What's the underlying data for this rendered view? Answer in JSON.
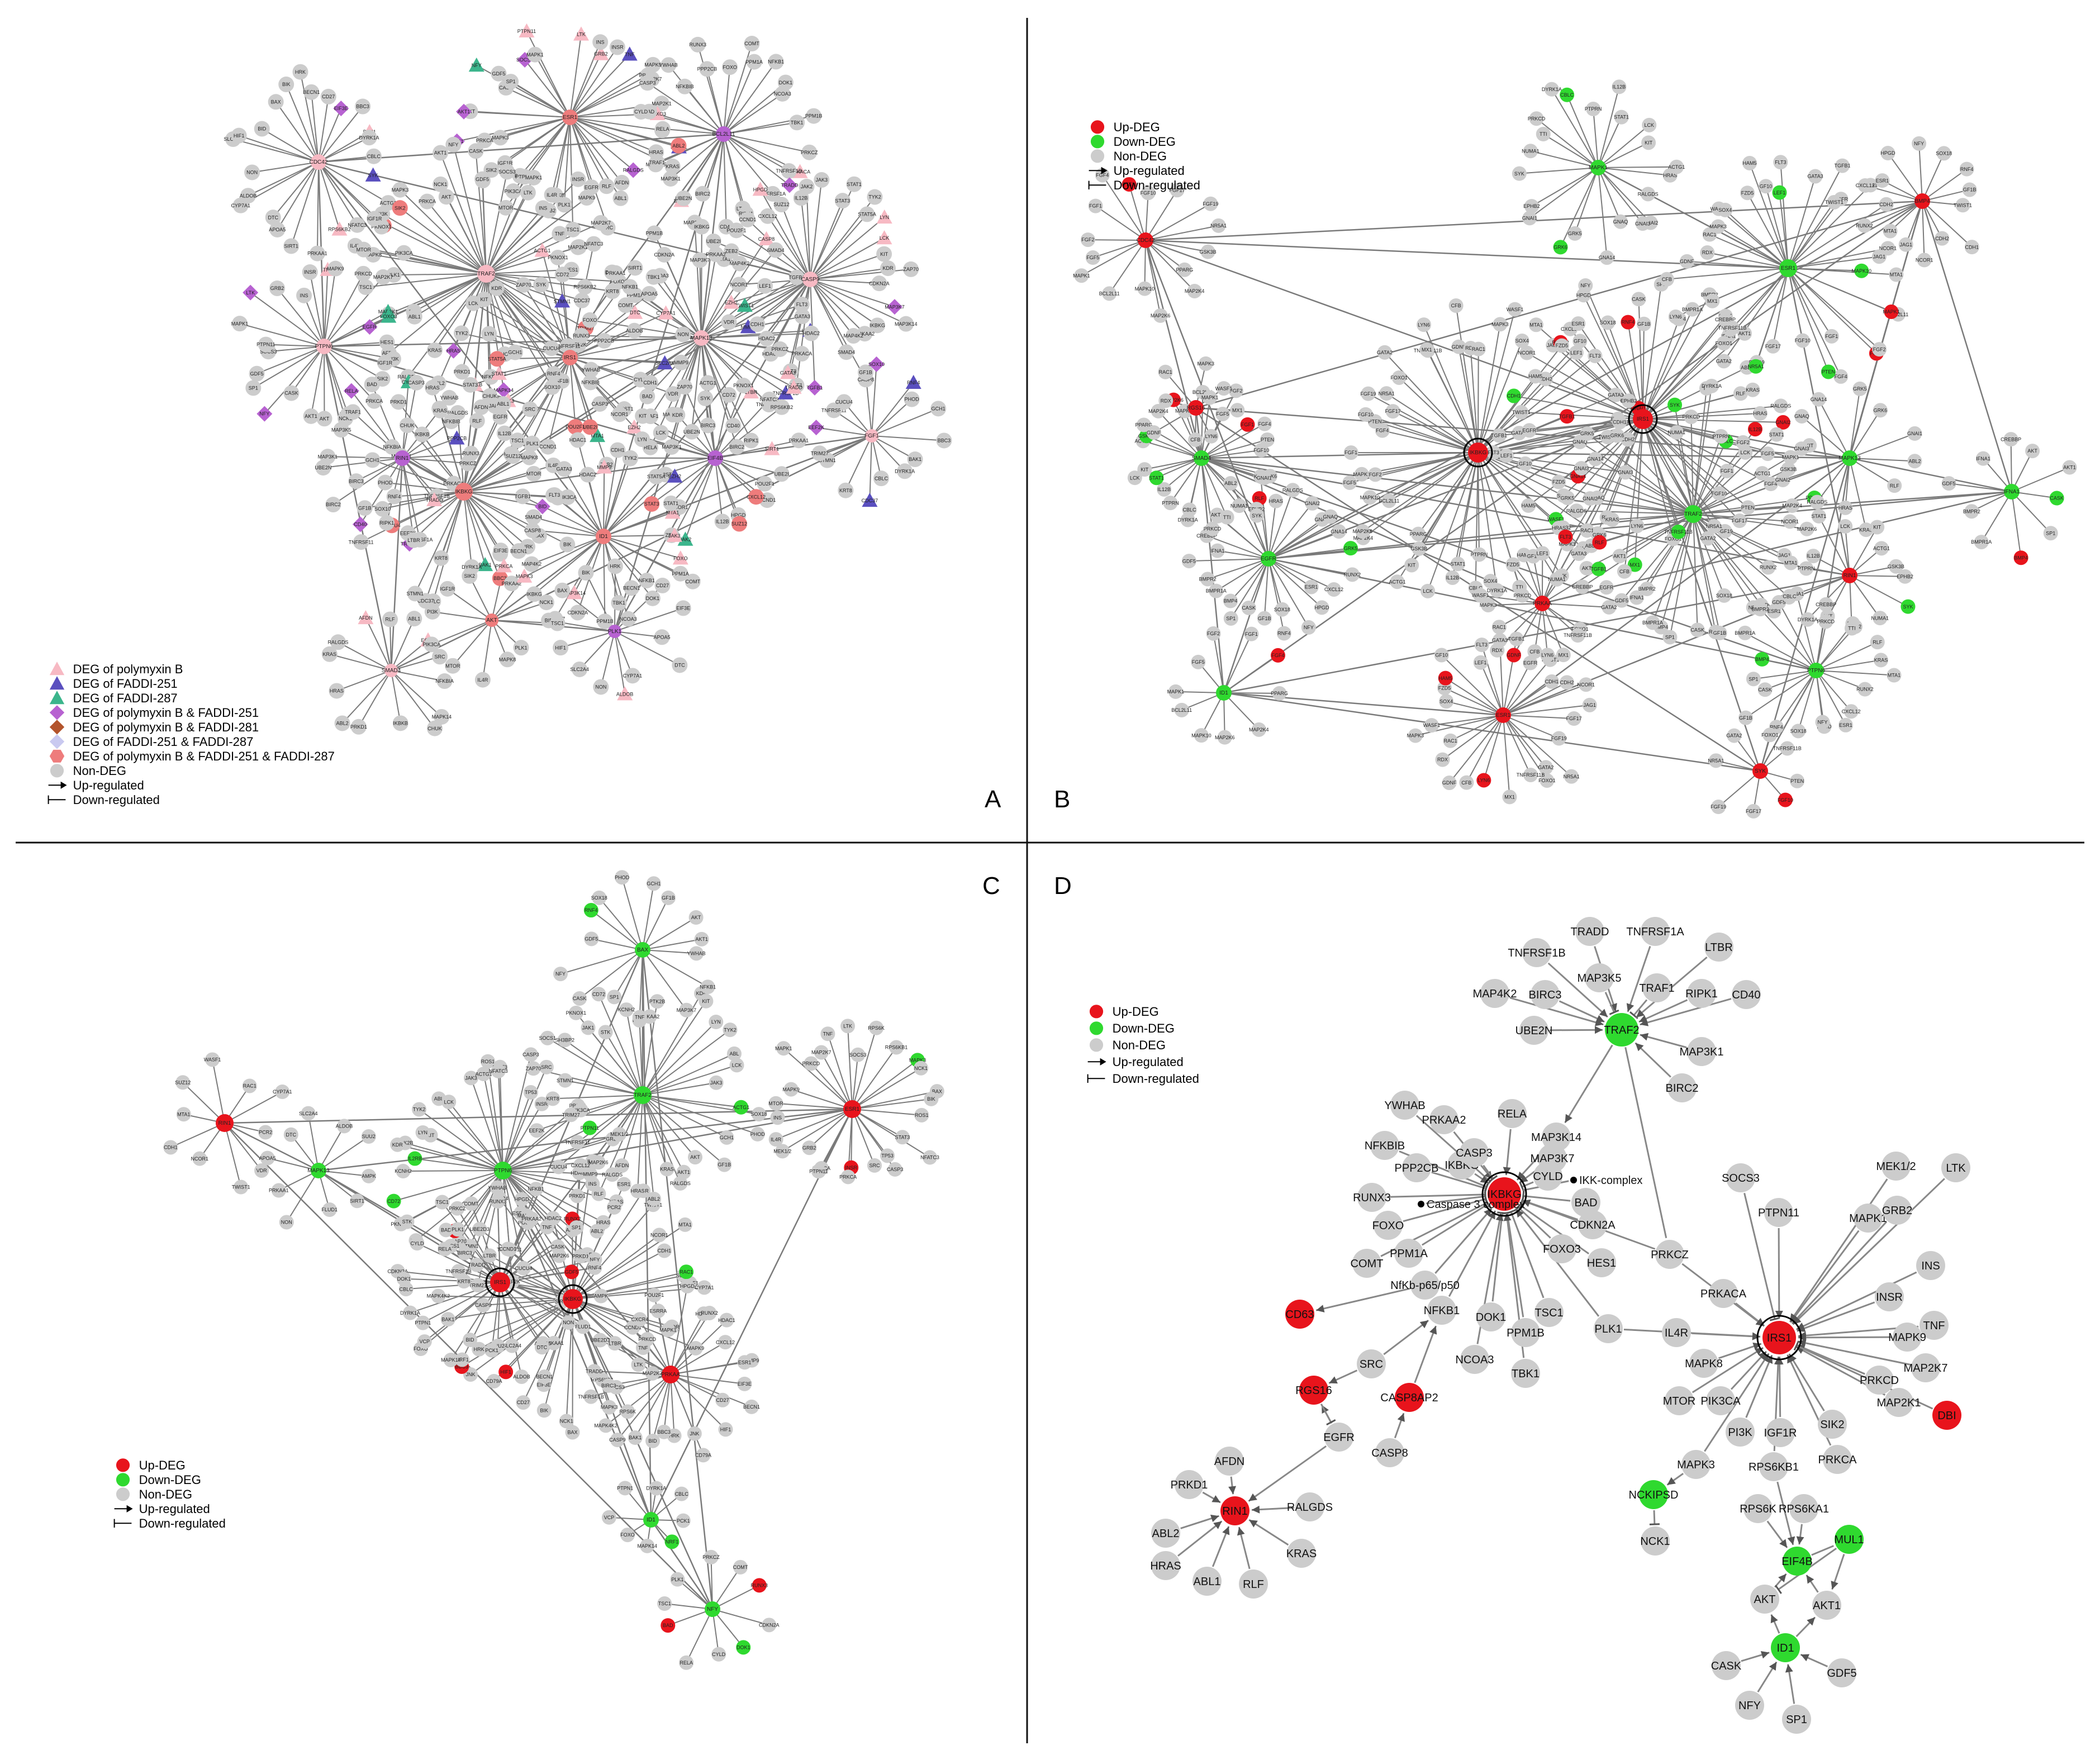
{
  "panels": {
    "A": {
      "letter": "A",
      "legend": [
        {
          "shape": "tri",
          "color": "#f7b9c3",
          "label": "DEG of polymyxin B"
        },
        {
          "shape": "tri",
          "color": "#5a4fbf",
          "label": "DEG of FADDI-251"
        },
        {
          "shape": "tri",
          "color": "#3bb58c",
          "label": "DEG of FADDI-287"
        },
        {
          "shape": "diamond",
          "color": "#b762d1",
          "label": "DEG of polymyxin B & FADDI-251"
        },
        {
          "shape": "diamond",
          "color": "#b3542c",
          "label": "DEG of polymyxin B & FADDI-281"
        },
        {
          "shape": "diamond",
          "color": "#c9c9f0",
          "label": "DEG of FADDI-251 & FADDI-287"
        },
        {
          "shape": "hex",
          "color": "#ee7c7c",
          "label": "DEG of polymyxin B & FADDI-251 & FADDI-287"
        },
        {
          "shape": "circle",
          "color": "#cccccc",
          "label": "Non-DEG"
        },
        {
          "shape": "arrow",
          "color": "#000000",
          "label": "Up-regulated"
        },
        {
          "shape": "tee",
          "color": "#000000",
          "label": "Down-regulated"
        }
      ],
      "hubs": [
        "IRS1",
        "IKBKG",
        "TRAF2",
        "RIN1",
        "ID1",
        "EIF4B",
        "ESR1",
        "CDC42",
        "MAPK13",
        "PTPN6",
        "CASP9",
        "BCL2L11"
      ],
      "labels": [
        "PRKD1",
        "ABL2",
        "HRAS",
        "KRAS",
        "RALGDS",
        "AFDN",
        "RLF",
        "ABL1",
        "EGFR",
        "SRC",
        "TSC1",
        "PLK1",
        "MAPK8",
        "IL4R",
        "MTOR",
        "PIK3CA",
        "PI3K",
        "IGF1R",
        "SIK2",
        "PRKCA",
        "MAPK3",
        "NCK1",
        "AKT",
        "AKT1",
        "CASK",
        "NFY",
        "SP1",
        "GDF5",
        "SOCS3",
        "PTPN11",
        "MAPK1",
        "LTK",
        "GRB2",
        "INS",
        "INSR",
        "TNF",
        "MAPK9",
        "PRKCD",
        "MAP2K7",
        "MAP2K1",
        "FOXO3",
        "HES1",
        "PRKCZ",
        "PRKACA",
        "TNFRSF1B",
        "TRADD",
        "TNFRSF1A",
        "LTBR",
        "RIPK1",
        "CD40",
        "BIRC2",
        "BIRC3",
        "UBE2N",
        "MAP3K1",
        "MAP3K5",
        "TRAF1",
        "RELA",
        "BAD",
        "CYLD",
        "CASP3",
        "YWHAB",
        "NFKBIB",
        "PPP2CB",
        "RUNX3",
        "FOXO",
        "COMT",
        "PPM1A",
        "NFKB1",
        "DOK1",
        "NCOA3",
        "TBK1",
        "PPM1B",
        "CDKN2A",
        "MAP3K14",
        "MAP3K7",
        "IKBKG",
        "PRKAA2",
        "MAP4K2",
        "CASP8",
        "SMAD4",
        "TGFB1",
        "LEF1",
        "FLT3",
        "GATA3",
        "HDAC1",
        "HDAC2",
        "MMP9",
        "CDH1",
        "VDR",
        "TWIST1",
        "EZH2",
        "NCOR1",
        "MTA1",
        "ZEB2",
        "UBE2I",
        "POU2F1",
        "CCND1",
        "CXCL12",
        "HPGD",
        "SUZ12",
        "IL12B",
        "JAK2",
        "JAK3",
        "STAT1",
        "STAT3",
        "STAT5A",
        "TYK2",
        "LYN",
        "LCK",
        "KIT",
        "KDR",
        "ZAP70",
        "SYK",
        "ACTG1",
        "CD72",
        "PKNOX1",
        "NFATC3",
        "RPS6KB2",
        "PRKAA1",
        "SIRT1",
        "APOA5",
        "DTC",
        "CYP7A1",
        "ALDOB",
        "NON",
        "SLC2A4",
        "HIF1",
        "BID",
        "BAX",
        "BIK",
        "HRK",
        "BECN1",
        "CD27",
        "EIF3E",
        "BBC3",
        "BAK1",
        "DYRK1A",
        "CBLC",
        "CDC37",
        "KRT8",
        "STMN1",
        "TRIM27",
        "EEF2K",
        "TNFRSF11",
        "CUCU4",
        "GF1B",
        "SOX10",
        "RNF4",
        "PHOD",
        "GCH1",
        "NFKBIA",
        "MAPK14",
        "CHUK",
        "IKBKB"
      ]
    },
    "B": {
      "letter": "B",
      "legend": [
        {
          "shape": "circle",
          "color": "#e8141c",
          "label": "Up-DEG"
        },
        {
          "shape": "circle",
          "color": "#2fd92f",
          "label": "Down-DEG"
        },
        {
          "shape": "circle",
          "color": "#cccccc",
          "label": "Non-DEG"
        },
        {
          "shape": "arrow",
          "color": "#000000",
          "label": "Up-regulated"
        },
        {
          "shape": "tee",
          "color": "#000000",
          "label": "Down-regulated"
        }
      ],
      "labels": [
        "MAPK1",
        "FGF5",
        "FGF2",
        "FGF1",
        "FGF4",
        "PTEN",
        "FGF10",
        "FGF17",
        "FGF19",
        "NR5A1",
        "GATA2",
        "FOXO1",
        "TNFRSF11B",
        "MX1",
        "LYN6",
        "CFB",
        "GDNF",
        "RDX",
        "RAC1",
        "MAPK3",
        "WASF1",
        "SOX4",
        "FZD5",
        "HAM5",
        "GF10",
        "LEF1",
        "FLT3",
        "GATA3",
        "TGFB1",
        "EGFR",
        "TWIST1",
        "CDH1",
        "CDH2",
        "NCOR1",
        "JAG1",
        "MTA1",
        "RUNX2",
        "CXCL12",
        "ESR1",
        "HPGD",
        "NFY",
        "SOX18",
        "RNF4",
        "GF1B",
        "CASK",
        "SP1",
        "BMP4",
        "BMPR1A",
        "BMPR2",
        "GDF5",
        "IFNA1",
        "CREBBP",
        "AKT",
        "AKT1",
        "ABL2",
        "RLF",
        "KRAS",
        "HRAS",
        "RALGDS",
        "GNAI2",
        "GNAI3",
        "GNAQ",
        "GNA14",
        "GRK5",
        "GRK6",
        "GNAI1",
        "EPHB2",
        "SYK",
        "NUMA1",
        "TTI",
        "PRKCD",
        "DYRK1A",
        "CBLC",
        "PTPRN",
        "IL12B",
        "STAT1",
        "LCK",
        "KIT",
        "ACTG1",
        "GSK3B",
        "PPARG",
        "MAP2K4",
        "MAP2K6",
        "MAPK10",
        "BCL2L11"
      ]
    },
    "C": {
      "letter": "C",
      "legend": [
        {
          "shape": "circle",
          "color": "#e8141c",
          "label": "Up-DEG"
        },
        {
          "shape": "circle",
          "color": "#2fd92f",
          "label": "Down-DEG"
        },
        {
          "shape": "circle",
          "color": "#cccccc",
          "label": "Non-DEG"
        },
        {
          "shape": "arrow",
          "color": "#000000",
          "label": "Up-regulated"
        },
        {
          "shape": "tee",
          "color": "#000000",
          "label": "Down-regulated"
        }
      ],
      "labels": [
        "RALGDS",
        "KRAS",
        "ABL2",
        "HRAS",
        "AFDN",
        "RLF",
        "PRKD1",
        "MAP2K6",
        "CUCU4",
        "TNFRSF11",
        "EEF2K",
        "TRIM27",
        "KRT8",
        "STMN1",
        "ZAP70",
        "SOCS1",
        "SH3BP2",
        "JAK1",
        "PKNOX1",
        "STK",
        "CD72",
        "KCNH2",
        "IL2RB",
        "PTK2B",
        "KDR",
        "KIT",
        "LYN",
        "TYK2",
        "ABL",
        "LCK",
        "JAK3",
        "ACTG1",
        "ROS1",
        "STAT3",
        "NFATC3",
        "CASP3",
        "TP53",
        "SRC",
        "INSR",
        "PRKCA",
        "PIK3CA",
        "PTPN11",
        "GRB2",
        "MEK1/2",
        "IL4R",
        "INS",
        "MTOR",
        "MAPK9",
        "MAPK1",
        "PRKCD",
        "MAP2K7",
        "TNF",
        "LTK",
        "SOCS3",
        "RPS6K",
        "RPS6KB1",
        "MAPK3",
        "NCK1",
        "BAX",
        "BIK",
        "EIF3E",
        "BECN1",
        "CD27",
        "HIF1",
        "CD79A",
        "JNK",
        "HRK",
        "BBC3",
        "BID",
        "BAK1",
        "CASP9",
        "MAPK4K2",
        "TNFRSF1B",
        "BIRC3",
        "TRADD",
        "LTBR",
        "UBE2D3",
        "CCND1",
        "CXCR4",
        "ESRRA",
        "POU2F1",
        "HPGD",
        "HDAC2",
        "RUNX2",
        "HDAC1",
        "CXCL12",
        "MMP9",
        "ESR1",
        "PCR2",
        "VDR",
        "TWIST1",
        "NCOR1",
        "CDH1",
        "MTA1",
        "SUZ12",
        "WASF1",
        "RAC1",
        "CYP7A1",
        "AMPK",
        "SIRT1",
        "FLUD1",
        "NON",
        "PRKAA1",
        "APOA5",
        "DTC",
        "SLC2A4",
        "ALDOB",
        "SUU2",
        "PCK1",
        "NRF1",
        "MAPK14",
        "FOXO",
        "VCP",
        "PTPN1",
        "DYRK1A",
        "CBLC",
        "CDKN2A",
        "DOK1",
        "CYLD",
        "RELA",
        "BAD",
        "TSC1",
        "PLK1",
        "PRKCZ",
        "COMT",
        "RUNX3",
        "YWHAB",
        "NFKB1",
        "MAP3K7",
        "PRKAA2",
        "TNF",
        "SP1",
        "CASK",
        "NFY",
        "GDF5",
        "RNF4",
        "SOX18",
        "PHOD",
        "GCH1",
        "GF1B",
        "AKT",
        "AKT1"
      ]
    },
    "D": {
      "letter": "D",
      "legend": [
        {
          "shape": "circle",
          "color": "#e8141c",
          "label": "Up-DEG"
        },
        {
          "shape": "circle",
          "color": "#2fd92f",
          "label": "Down-DEG"
        },
        {
          "shape": "circle",
          "color": "#cccccc",
          "label": "Non-DEG"
        },
        {
          "shape": "arrow",
          "color": "#000000",
          "label": "Up-regulated"
        },
        {
          "shape": "tee",
          "color": "#000000",
          "label": "Down-regulated"
        }
      ],
      "nodes": [
        {
          "id": "TRAF2",
          "label": "TRAF2",
          "kind": "down",
          "ring": false
        },
        {
          "id": "TRADD",
          "label": "TRADD",
          "kind": "non"
        },
        {
          "id": "TNFRSF1B",
          "label": "TNFRSF1B",
          "kind": "non"
        },
        {
          "id": "TNFRSF1A",
          "label": "TNFRSF1A",
          "kind": "non"
        },
        {
          "id": "MAP3K5",
          "label": "MAP3K5",
          "kind": "non"
        },
        {
          "id": "MAP4K2",
          "label": "MAP4K2",
          "kind": "non"
        },
        {
          "id": "BIRC3",
          "label": "BIRC3",
          "kind": "non"
        },
        {
          "id": "TRAF1",
          "label": "TRAF1",
          "kind": "non"
        },
        {
          "id": "LTBR",
          "label": "LTBR",
          "kind": "non"
        },
        {
          "id": "RIPK1",
          "label": "RIPK1",
          "kind": "non"
        },
        {
          "id": "CD40",
          "label": "CD40",
          "kind": "non"
        },
        {
          "id": "UBE2N",
          "label": "UBE2N",
          "kind": "non"
        },
        {
          "id": "MAP3K1",
          "label": "MAP3K1",
          "kind": "non"
        },
        {
          "id": "BIRC2",
          "label": "BIRC2",
          "kind": "non"
        },
        {
          "id": "IKBKG",
          "label": "IKBKG",
          "kind": "up",
          "ring": true
        },
        {
          "id": "YWHAB",
          "label": "YWHAB",
          "kind": "non"
        },
        {
          "id": "PRKAA2",
          "label": "PRKAA2",
          "kind": "non"
        },
        {
          "id": "RELA",
          "label": "RELA",
          "kind": "non"
        },
        {
          "id": "MAP3K14",
          "label": "MAP3K14",
          "kind": "non"
        },
        {
          "id": "NFKBIB",
          "label": "NFKBIB",
          "kind": "non"
        },
        {
          "id": "PPP2CB",
          "label": "PPP2CB",
          "kind": "non"
        },
        {
          "id": "IKBKGsmall",
          "label": "IKBKG",
          "kind": "non"
        },
        {
          "id": "CASP3",
          "label": "CASP3",
          "kind": "non"
        },
        {
          "id": "MAP3K7",
          "label": "MAP3K7",
          "kind": "non"
        },
        {
          "id": "CYLD",
          "label": "CYLD",
          "kind": "non"
        },
        {
          "id": "IKKcomplex",
          "label": "IKK-complex",
          "kind": "dot"
        },
        {
          "id": "RUNX3",
          "label": "RUNX3",
          "kind": "non"
        },
        {
          "id": "Casp3complex",
          "label": "Caspase 3 complex",
          "kind": "dot"
        },
        {
          "id": "BAD",
          "label": "BAD",
          "kind": "non"
        },
        {
          "id": "CDKN2A",
          "label": "CDKN2A",
          "kind": "non"
        },
        {
          "id": "FOXO",
          "label": "FOXO",
          "kind": "non"
        },
        {
          "id": "FOXO3",
          "label": "FOXO3",
          "kind": "non"
        },
        {
          "id": "HES1",
          "label": "HES1",
          "kind": "non"
        },
        {
          "id": "COMT",
          "label": "COMT",
          "kind": "non"
        },
        {
          "id": "PPM1A",
          "label": "PPM1A",
          "kind": "non"
        },
        {
          "id": "NFkb",
          "label": "NfKb-p65/p50",
          "kind": "non"
        },
        {
          "id": "NFKB1",
          "label": "NFKB1",
          "kind": "non"
        },
        {
          "id": "DOK1",
          "label": "DOK1",
          "kind": "non"
        },
        {
          "id": "PPM1B",
          "label": "PPM1B",
          "kind": "non"
        },
        {
          "id": "TSC1",
          "label": "TSC1",
          "kind": "non"
        },
        {
          "id": "NCOA3",
          "label": "NCOA3",
          "kind": "non"
        },
        {
          "id": "TBK1",
          "label": "TBK1",
          "kind": "non"
        },
        {
          "id": "PLK1",
          "label": "PLK1",
          "kind": "non"
        },
        {
          "id": "PRKCZ",
          "label": "PRKCZ",
          "kind": "non"
        },
        {
          "id": "CD63",
          "label": "CD63",
          "kind": "up"
        },
        {
          "id": "SRC",
          "label": "SRC",
          "kind": "non"
        },
        {
          "id": "RGS16",
          "label": "RGS16",
          "kind": "up"
        },
        {
          "id": "CASP8AP2",
          "label": "CASP8AP2",
          "kind": "up"
        },
        {
          "id": "CASP8",
          "label": "CASP8",
          "kind": "non"
        },
        {
          "id": "EGFR",
          "label": "EGFR",
          "kind": "non"
        },
        {
          "id": "AFDN",
          "label": "AFDN",
          "kind": "non"
        },
        {
          "id": "PRKD1",
          "label": "PRKD1",
          "kind": "non"
        },
        {
          "id": "RIN1",
          "label": "RIN1",
          "kind": "up"
        },
        {
          "id": "RALGDS",
          "label": "RALGDS",
          "kind": "non"
        },
        {
          "id": "ABL2",
          "label": "ABL2",
          "kind": "non"
        },
        {
          "id": "HRAS",
          "label": "HRAS",
          "kind": "non"
        },
        {
          "id": "ABL1",
          "label": "ABL1",
          "kind": "non"
        },
        {
          "id": "RLF",
          "label": "RLF",
          "kind": "non"
        },
        {
          "id": "KRAS",
          "label": "KRAS",
          "kind": "non"
        },
        {
          "id": "IRS1",
          "label": "IRS1",
          "kind": "up",
          "ring": true
        },
        {
          "id": "SOCS3",
          "label": "SOCS3",
          "kind": "non"
        },
        {
          "id": "MEK12",
          "label": "MEK1/2",
          "kind": "non"
        },
        {
          "id": "LTK",
          "label": "LTK",
          "kind": "non"
        },
        {
          "id": "PTPN11",
          "label": "PTPN11",
          "kind": "non"
        },
        {
          "id": "MAPK1",
          "label": "MAPK1",
          "kind": "non"
        },
        {
          "id": "GRB2",
          "label": "GRB2",
          "kind": "non"
        },
        {
          "id": "IL4R",
          "label": "IL4R",
          "kind": "non"
        },
        {
          "id": "PRKACA",
          "label": "PRKACA",
          "kind": "non"
        },
        {
          "id": "INS",
          "label": "INS",
          "kind": "non"
        },
        {
          "id": "INSR",
          "label": "INSR",
          "kind": "non"
        },
        {
          "id": "TNF",
          "label": "TNF",
          "kind": "non"
        },
        {
          "id": "MAPK8",
          "label": "MAPK8",
          "kind": "non"
        },
        {
          "id": "MAPK9",
          "label": "MAPK9",
          "kind": "non"
        },
        {
          "id": "MTOR",
          "label": "MTOR",
          "kind": "non"
        },
        {
          "id": "PIK3CA",
          "label": "PIK3CA",
          "kind": "non"
        },
        {
          "id": "PRKCD",
          "label": "PRKCD",
          "kind": "non"
        },
        {
          "id": "MAP2K7",
          "label": "MAP2K7",
          "kind": "non"
        },
        {
          "id": "PI3K",
          "label": "PI3K",
          "kind": "non"
        },
        {
          "id": "IGF1R",
          "label": "IGF1R",
          "kind": "non"
        },
        {
          "id": "SIK2",
          "label": "SIK2",
          "kind": "non"
        },
        {
          "id": "MAP2K1",
          "label": "MAP2K1",
          "kind": "non"
        },
        {
          "id": "DBI",
          "label": "DBI",
          "kind": "up"
        },
        {
          "id": "PRKCA",
          "label": "PRKCA",
          "kind": "non"
        },
        {
          "id": "MAPK3",
          "label": "MAPK3",
          "kind": "non"
        },
        {
          "id": "RPS6KB1",
          "label": "RPS6KB1",
          "kind": "non"
        },
        {
          "id": "RPS6K",
          "label": "RPS6K",
          "kind": "non"
        },
        {
          "id": "RPS6KA1",
          "label": "RPS6KA1",
          "kind": "non"
        },
        {
          "id": "NCKIPSD",
          "label": "NCKIPSD",
          "kind": "down"
        },
        {
          "id": "NCK1",
          "label": "NCK1",
          "kind": "non"
        },
        {
          "id": "EIF4B",
          "label": "EIF4B",
          "kind": "down"
        },
        {
          "id": "MUL1",
          "label": "MUL1",
          "kind": "down"
        },
        {
          "id": "AKT",
          "label": "AKT",
          "kind": "non"
        },
        {
          "id": "AKT1",
          "label": "AKT1",
          "kind": "non"
        },
        {
          "id": "ID1",
          "label": "ID1",
          "kind": "down"
        },
        {
          "id": "CASK",
          "label": "CASK",
          "kind": "non"
        },
        {
          "id": "GDF5",
          "label": "GDF5",
          "kind": "non"
        },
        {
          "id": "NFY",
          "label": "NFY",
          "kind": "non"
        },
        {
          "id": "SP1",
          "label": "SP1",
          "kind": "non"
        }
      ]
    }
  },
  "colors": {
    "up": "#e8141c",
    "down": "#2fd92f",
    "non": "#cccccc",
    "edge": "#7a7a7a",
    "divider": "#111111"
  }
}
